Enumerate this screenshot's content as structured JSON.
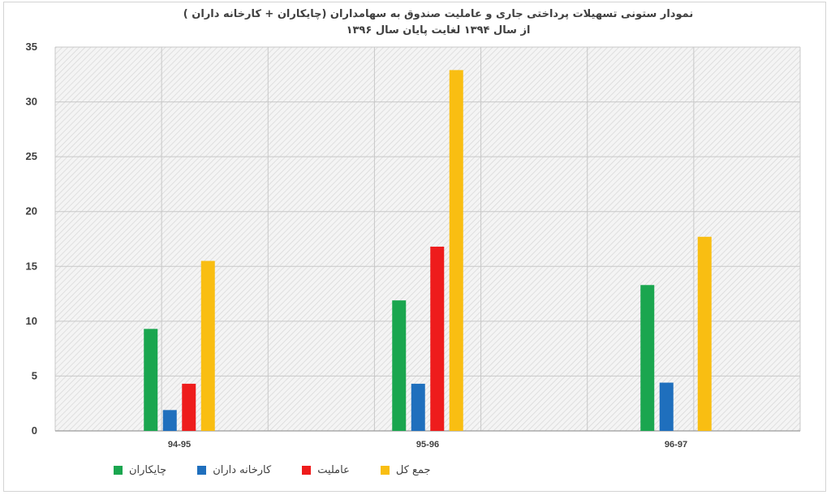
{
  "chart_data": {
    "type": "bar",
    "title": "نمودار ستونی تسهیلات پرداختی جاری و عاملیت صندوق به سهامداران (چایکاران + کارخانه داران )",
    "subtitle": "از سال ۱۳۹۴ لغایت پایان سال ۱۳۹۶",
    "categories": [
      "94-95",
      "95-96",
      "96-97"
    ],
    "series": [
      {
        "name": "چایکاران",
        "color": "#1aa64f",
        "values": [
          9.3,
          11.9,
          13.3
        ]
      },
      {
        "name": "کارخانه داران",
        "color": "#1f6fbd",
        "values": [
          1.9,
          4.3,
          4.4
        ]
      },
      {
        "name": "عاملیت",
        "color": "#ee1c1c",
        "values": [
          4.3,
          16.8,
          null
        ]
      },
      {
        "name": "جمع کل",
        "color": "#f9be12",
        "values": [
          15.5,
          32.9,
          17.7
        ]
      }
    ],
    "y_ticks": [
      "0",
      "5",
      "10",
      "15",
      "20",
      "25",
      "30",
      "35"
    ],
    "ylim": [
      0,
      35
    ],
    "grid": true,
    "legend_position": "bottom"
  }
}
